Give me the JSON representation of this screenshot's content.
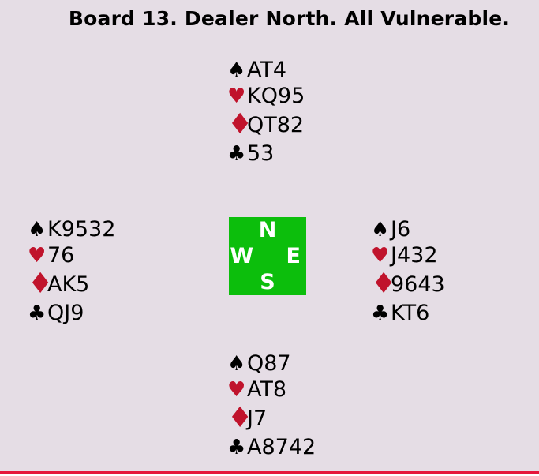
{
  "title": "Board 13. Dealer North. All Vulnerable.",
  "board_number": "13",
  "dealer": "North",
  "vulnerability": "All Vulnerable",
  "colors": {
    "background": "#E5DDE5",
    "text": "#000000",
    "suit_black": "#000000",
    "suit_red": "#C0132C",
    "compass_green": "#0CBE0C",
    "compass_letter": "#FFFFFF",
    "rule_red": "#E6173C"
  },
  "suit_symbols": {
    "spade": "♠",
    "heart": "♥",
    "diamond": "♦",
    "club": "♣"
  },
  "compass": {
    "north_label": "N",
    "west_label": "W",
    "east_label": "E",
    "south_label": "S"
  },
  "hands": {
    "north": {
      "spades": "AT4",
      "hearts": "KQ95",
      "diamonds": "QT82",
      "clubs": "53"
    },
    "west": {
      "spades": "K9532",
      "hearts": "76",
      "diamonds": "AK5",
      "clubs": "QJ9"
    },
    "east": {
      "spades": "J6",
      "hearts": "J432",
      "diamonds": "9643",
      "clubs": "KT6"
    },
    "south": {
      "spades": "Q87",
      "hearts": "AT8",
      "diamonds": "J7",
      "clubs": "A8742"
    }
  }
}
